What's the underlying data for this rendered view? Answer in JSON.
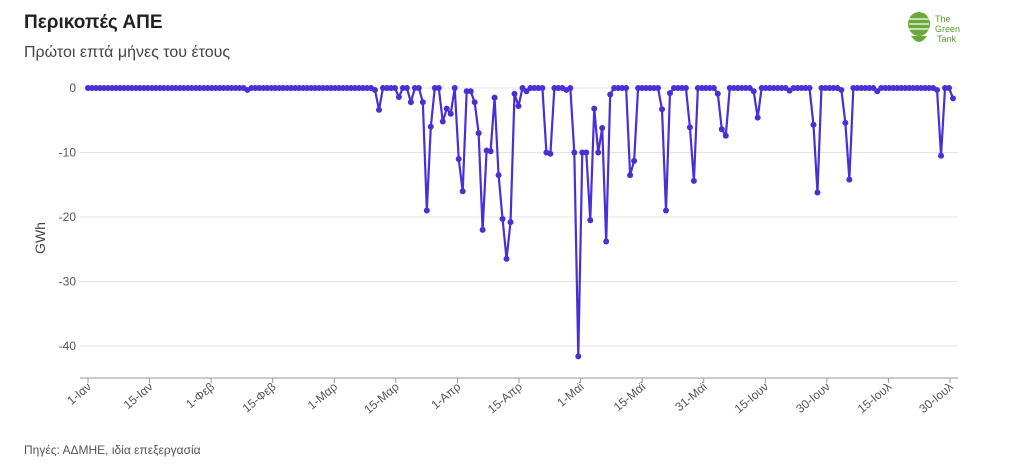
{
  "header": {
    "title": "Περικοπές ΑΠΕ",
    "subtitle": "Πρώτοι επτά μήνες του έτους"
  },
  "footer": {
    "source": "Πηγές: ΑΔΜΗΕ, ιδία επεξεργασία"
  },
  "logo": {
    "text": "The Green Tank",
    "color": "#5a9e2f"
  },
  "colors": {
    "series": "#4a2fd6",
    "grid": "#e4e4e4",
    "axis": "#999999"
  },
  "chart_data": {
    "type": "line",
    "title": "Περικοπές ΑΠΕ",
    "subtitle": "Πρώτοι επτά μήνες του έτους",
    "ylabel": "GWh",
    "xlabel": "",
    "ylim": [
      -45,
      0
    ],
    "yticks": [
      0,
      -10,
      -20,
      -30,
      -40
    ],
    "grid": "horizontal",
    "x_start": "1-Ιαν",
    "x_end": "31-Ιουλ",
    "xtick_labels": [
      "1-Ιαν",
      "15-Ιαν",
      "1-Φεβ",
      "15-Φεβ",
      "1-Μαρ",
      "15-Μαρ",
      "1-Απρ",
      "15-Απρ",
      "1-Μαϊ",
      "15-Μαϊ",
      "31-Μαϊ",
      "15-Ιουν",
      "30-Ιουν",
      "15-Ιουλ",
      "30-Ιουλ"
    ],
    "series": [
      {
        "values": [
          0,
          0,
          0,
          0,
          0,
          0,
          0,
          0,
          0,
          0,
          0,
          0,
          0,
          0,
          0,
          0,
          0,
          0,
          0,
          0,
          0,
          0,
          0,
          0,
          0,
          0,
          0,
          0,
          0,
          0,
          0,
          0,
          0,
          0,
          0,
          0,
          0,
          0,
          0,
          0,
          -0.3,
          0,
          0,
          0,
          0,
          0,
          0,
          0,
          0,
          0,
          0,
          0,
          0,
          0,
          0,
          0,
          0,
          0,
          0,
          0,
          0,
          0,
          0,
          0,
          0,
          0,
          0,
          0,
          0,
          0,
          0,
          0,
          -0.3,
          -3.4,
          0,
          0,
          0,
          0,
          -1.4,
          0,
          0,
          -2.2,
          0,
          0,
          -2.2,
          -19,
          -6,
          0,
          0,
          -5.2,
          -3.2,
          -4,
          0,
          -11,
          -16,
          -0.5,
          -0.5,
          -2.2,
          -7,
          -22,
          -9.7,
          -9.8,
          -1.5,
          -13.5,
          -20.3,
          -26.5,
          -20.8,
          -0.9,
          -2.8,
          0,
          -0.5,
          0,
          0,
          0,
          0,
          -10,
          -10.2,
          0,
          0,
          0,
          -0.3,
          0,
          -10,
          -41.6,
          -10,
          -10,
          -20.5,
          -3.2,
          -10,
          -6.2,
          -23.8,
          -1,
          0,
          0,
          0,
          0,
          -13.5,
          -11.3,
          0,
          0,
          0,
          0,
          0,
          0,
          -3.3,
          -19,
          -0.8,
          0,
          0,
          0,
          0,
          -6.1,
          -14.4,
          0,
          0,
          0,
          0,
          0,
          -0.9,
          -6.4,
          -7.4,
          0,
          0,
          0,
          0,
          0,
          0,
          -0.5,
          -4.6,
          0,
          0,
          0,
          0,
          0,
          0,
          0,
          -0.4,
          0,
          0,
          0,
          0,
          0,
          -5.7,
          -16.2,
          0,
          0,
          0,
          0,
          0,
          -0.3,
          -5.4,
          -14.2,
          0,
          0,
          0,
          0,
          0,
          0,
          -0.5,
          0,
          0,
          0,
          0,
          0,
          0,
          0,
          0,
          0,
          0,
          0,
          0,
          0,
          0,
          -0.3,
          -10.5,
          0,
          0,
          -1.6
        ]
      }
    ]
  }
}
